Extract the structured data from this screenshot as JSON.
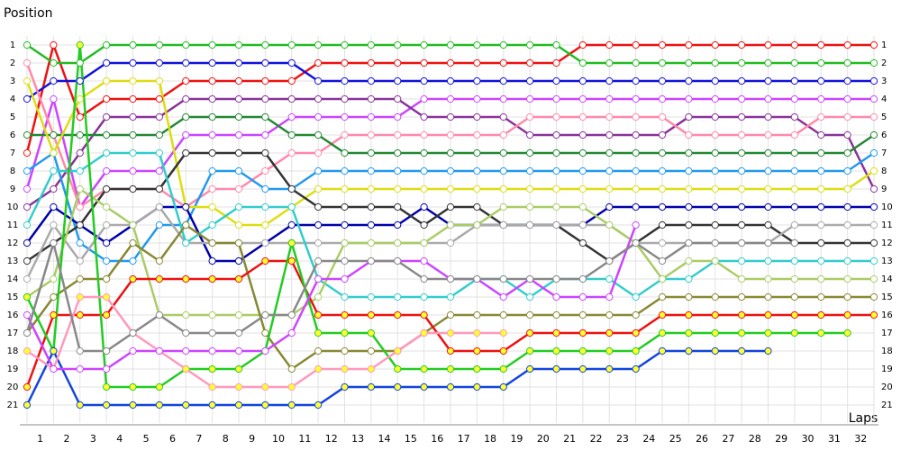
{
  "chart_data": {
    "type": "line",
    "y_label": "Position",
    "x_label": "Laps",
    "x": [
      0,
      1,
      2,
      3,
      4,
      5,
      6,
      7,
      8,
      9,
      10,
      11,
      12,
      13,
      14,
      15,
      16,
      17,
      18,
      19,
      20,
      21,
      22,
      23,
      24,
      25,
      26,
      27,
      28,
      29,
      30,
      31,
      32
    ],
    "xlim": [
      -0.5,
      32.5
    ],
    "ylim": [
      22,
      0
    ],
    "xticks": [
      {
        "value": 0.5,
        "label": "1"
      },
      {
        "value": 1.5,
        "label": "2"
      },
      {
        "value": 2.5,
        "label": "3"
      },
      {
        "value": 3.5,
        "label": "4"
      },
      {
        "value": 4.5,
        "label": "5"
      },
      {
        "value": 5.5,
        "label": "6"
      },
      {
        "value": 6.5,
        "label": "7"
      },
      {
        "value": 7.5,
        "label": "8"
      },
      {
        "value": 8.5,
        "label": "9"
      },
      {
        "value": 9.5,
        "label": "10"
      },
      {
        "value": 10.5,
        "label": "11"
      },
      {
        "value": 11.5,
        "label": "12"
      },
      {
        "value": 12.5,
        "label": "13"
      },
      {
        "value": 13.5,
        "label": "14"
      },
      {
        "value": 14.5,
        "label": "15"
      },
      {
        "value": 15.5,
        "label": "16"
      },
      {
        "value": 16.5,
        "label": "17"
      },
      {
        "value": 17.5,
        "label": "18"
      },
      {
        "value": 18.5,
        "label": "19"
      },
      {
        "value": 19.5,
        "label": "20"
      },
      {
        "value": 20.5,
        "label": "21"
      },
      {
        "value": 21.5,
        "label": "22"
      },
      {
        "value": 22.5,
        "label": "23"
      },
      {
        "value": 23.5,
        "label": "24"
      },
      {
        "value": 24.5,
        "label": "25"
      },
      {
        "value": 25.5,
        "label": "26"
      },
      {
        "value": 26.5,
        "label": "27"
      },
      {
        "value": 27.5,
        "label": "28"
      },
      {
        "value": 28.5,
        "label": "29"
      },
      {
        "value": 29.5,
        "label": "30"
      },
      {
        "value": 30.5,
        "label": "31"
      },
      {
        "value": 31.5,
        "label": "32"
      }
    ],
    "yticks": [
      1,
      2,
      3,
      4,
      5,
      6,
      7,
      8,
      9,
      10,
      11,
      12,
      13,
      14,
      15,
      16,
      17,
      18,
      19,
      20,
      21
    ],
    "grid": true,
    "series": [
      {
        "color": "#ee1111",
        "marker": "#ffffff",
        "values": [
          7,
          1,
          5,
          4,
          4,
          4,
          3,
          3,
          3,
          3,
          3,
          2,
          2,
          2,
          2,
          2,
          2,
          2,
          2,
          2,
          2,
          1,
          1,
          1,
          1,
          1,
          1,
          1,
          1,
          1,
          1,
          1,
          1
        ]
      },
      {
        "color": "#22bb22",
        "marker": "#ffffff",
        "values": [
          1,
          2,
          2,
          1,
          1,
          1,
          1,
          1,
          1,
          1,
          1,
          1,
          1,
          1,
          1,
          1,
          1,
          1,
          1,
          1,
          1,
          2,
          2,
          2,
          2,
          2,
          2,
          2,
          2,
          2,
          2,
          2,
          2
        ]
      },
      {
        "color": "#1111dd",
        "marker": "#ffffff",
        "values": [
          4,
          3,
          3,
          2,
          2,
          2,
          2,
          2,
          2,
          2,
          2,
          3,
          3,
          3,
          3,
          3,
          3,
          3,
          3,
          3,
          3,
          3,
          3,
          3,
          3,
          3,
          3,
          3,
          3,
          3,
          3,
          3,
          3
        ]
      },
      {
        "color": "#cc44ff",
        "marker": "#ffffff",
        "values": [
          9,
          4,
          10,
          8,
          8,
          8,
          6,
          6,
          6,
          6,
          5,
          5,
          5,
          5,
          5,
          4,
          4,
          4,
          4,
          4,
          4,
          4,
          4,
          4,
          4,
          4,
          4,
          4,
          4,
          4,
          4,
          4,
          4
        ]
      },
      {
        "color": "#883399",
        "marker": "#ffffff",
        "values": [
          10,
          9,
          7,
          5,
          5,
          5,
          4,
          4,
          4,
          4,
          4,
          4,
          4,
          4,
          4,
          5,
          5,
          5,
          5,
          6,
          6,
          6,
          6,
          6,
          6,
          5,
          5,
          5,
          5,
          5,
          6,
          6,
          9
        ]
      },
      {
        "color": "#ff88aa",
        "marker": "#ffffff",
        "values": [
          2,
          6,
          10,
          9,
          9,
          9,
          10,
          9,
          9,
          8,
          7,
          7,
          6,
          6,
          6,
          6,
          6,
          6,
          6,
          5,
          5,
          5,
          5,
          5,
          5,
          6,
          6,
          6,
          6,
          6,
          5,
          5,
          5
        ]
      },
      {
        "color": "#228833",
        "marker": "#ffffff",
        "values": [
          6,
          6,
          6,
          6,
          6,
          6,
          5,
          5,
          5,
          5,
          6,
          6,
          7,
          7,
          7,
          7,
          7,
          7,
          7,
          7,
          7,
          7,
          7,
          7,
          7,
          7,
          7,
          7,
          7,
          7,
          7,
          7,
          6
        ]
      },
      {
        "color": "#2299ee",
        "marker": "#ffffff",
        "values": [
          8,
          7,
          12,
          13,
          13,
          11,
          11,
          8,
          8,
          9,
          9,
          8,
          8,
          8,
          8,
          8,
          8,
          8,
          8,
          8,
          8,
          8,
          8,
          8,
          8,
          8,
          8,
          8,
          8,
          8,
          8,
          8,
          7
        ]
      },
      {
        "color": "#dddd11",
        "marker": "#ffffff",
        "values": [
          3,
          7,
          4,
          3,
          3,
          3,
          10,
          10,
          11,
          11,
          10,
          9,
          9,
          9,
          9,
          9,
          9,
          9,
          9,
          9,
          9,
          9,
          9,
          9,
          9,
          9,
          9,
          9,
          9,
          9,
          9,
          9,
          8
        ]
      },
      {
        "color": "#0000aa",
        "marker": "#ffffff",
        "values": [
          12,
          10,
          11,
          12,
          11,
          10,
          10,
          13,
          13,
          12,
          11,
          11,
          11,
          11,
          11,
          10,
          11,
          11,
          11,
          11,
          11,
          11,
          10,
          10,
          10,
          10,
          10,
          10,
          10,
          10,
          10,
          10,
          10
        ]
      },
      {
        "color": "#333333",
        "marker": "#ffffff",
        "values": [
          13,
          12,
          11,
          9,
          9,
          9,
          7,
          7,
          7,
          7,
          9,
          10,
          10,
          10,
          10,
          11,
          10,
          10,
          11,
          11,
          11,
          12,
          13,
          12,
          11,
          11,
          11,
          11,
          11,
          12,
          12,
          12,
          12
        ]
      },
      {
        "color": "#aaaaaa",
        "marker": "#ffffff",
        "values": [
          14,
          11,
          13,
          11,
          11,
          10,
          12,
          12,
          12,
          12,
          12,
          12,
          12,
          12,
          12,
          12,
          12,
          11,
          11,
          11,
          11,
          11,
          11,
          12,
          12,
          12,
          12,
          12,
          12,
          11,
          11,
          11,
          11
        ]
      },
      {
        "color": "#33cccc",
        "marker": "#ffffff",
        "values": [
          11,
          8,
          8,
          7,
          7,
          7,
          12,
          11,
          10,
          10,
          10,
          14,
          15,
          15,
          15,
          15,
          15,
          14,
          14,
          15,
          14,
          14,
          14,
          15,
          14,
          14,
          13,
          13,
          13,
          13,
          13,
          13,
          13
        ]
      },
      {
        "color": "#aacc66",
        "marker": "#ffffff",
        "values": [
          15,
          14,
          9,
          10,
          11,
          16,
          16,
          16,
          16,
          16,
          16,
          15,
          12,
          12,
          12,
          12,
          11,
          11,
          10,
          10,
          10,
          10,
          11,
          12,
          14,
          13,
          13,
          14,
          14,
          14,
          14,
          14,
          14
        ]
      },
      {
        "color": "#888833",
        "marker": "#ffffff",
        "values": [
          17,
          15,
          14,
          14,
          12,
          13,
          11,
          12,
          12,
          17,
          19,
          18,
          18,
          18,
          18,
          17,
          16,
          16,
          16,
          16,
          16,
          16,
          16,
          16,
          15,
          15,
          15,
          15,
          15,
          15,
          15,
          15,
          15
        ]
      },
      {
        "color": "#ee1111",
        "marker": "#ffff33",
        "values": [
          20,
          16,
          16,
          16,
          14,
          14,
          14,
          14,
          14,
          13,
          13,
          16,
          16,
          16,
          16,
          16,
          18,
          18,
          18,
          17,
          17,
          17,
          17,
          17,
          16,
          16,
          16,
          16,
          16,
          16,
          16,
          16,
          16
        ]
      },
      {
        "color": "#22cc22",
        "marker": "#ffff33",
        "values": [
          15,
          18,
          1,
          20,
          20,
          20,
          19,
          19,
          19,
          18,
          12,
          17,
          17,
          17,
          19,
          19,
          19,
          19,
          19,
          18,
          18,
          18,
          18,
          18,
          17,
          17,
          17,
          17,
          17,
          17,
          17,
          17,
          null
        ]
      },
      {
        "color": "#1144dd",
        "marker": "#ffff33",
        "values": [
          21,
          18,
          21,
          21,
          21,
          21,
          21,
          21,
          21,
          21,
          21,
          21,
          20,
          20,
          20,
          20,
          20,
          20,
          20,
          19,
          19,
          19,
          19,
          19,
          18,
          18,
          18,
          18,
          18,
          null,
          null,
          null,
          null
        ]
      },
      {
        "color": "#ff99bb",
        "marker": "#ffff33",
        "values": [
          18,
          19,
          15,
          15,
          17,
          18,
          19,
          20,
          20,
          20,
          20,
          19,
          19,
          19,
          18,
          17,
          17,
          17,
          17,
          null,
          null,
          null,
          null,
          null,
          null,
          null,
          null,
          null,
          null,
          null,
          null,
          null,
          null
        ]
      },
      {
        "color": "#cc44ff",
        "marker": "#ffffff",
        "values": [
          16,
          19,
          19,
          19,
          18,
          18,
          18,
          18,
          18,
          18,
          17,
          14,
          14,
          13,
          13,
          13,
          14,
          14,
          15,
          14,
          15,
          15,
          15,
          11,
          null,
          null,
          null,
          null,
          null,
          null,
          null,
          null,
          null
        ]
      },
      {
        "color": "#888888",
        "marker": "#ffffff",
        "values": [
          17,
          12,
          18,
          18,
          17,
          16,
          17,
          17,
          17,
          16,
          16,
          13,
          13,
          13,
          13,
          14,
          14,
          14,
          14,
          14,
          14,
          14,
          13,
          12,
          13,
          12,
          12,
          12,
          12,
          12,
          null,
          null,
          null
        ]
      }
    ]
  }
}
